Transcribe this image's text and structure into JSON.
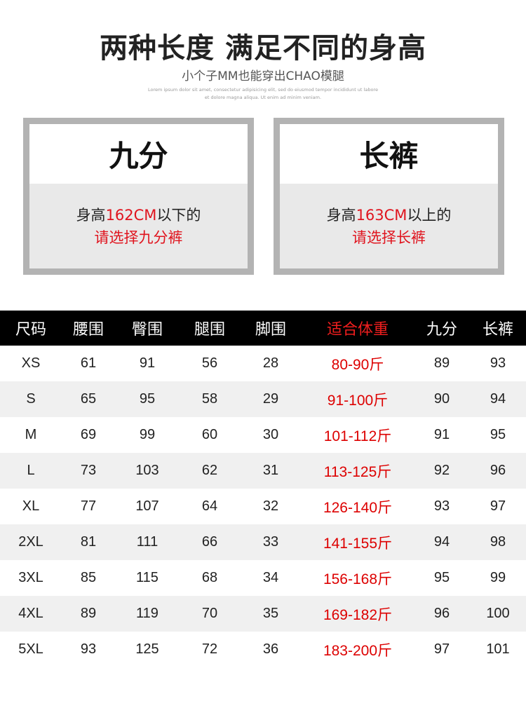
{
  "header": {
    "title": "两种长度 满足不同的身高",
    "subtitle": "小个子MM也能穿出CHAO模腿",
    "lorem": [
      "Lorem ipsum dolor sit amet, consectetur adipisicing elit, sed do eiusmod tempor incididunt ut labore",
      "et dolore magna aliqua. Ut enim ad minim veniam."
    ]
  },
  "options": [
    {
      "name": "九分",
      "line1_pre": "身高",
      "line1_red": "162CM",
      "line1_post": "以下的",
      "line2": "请选择九分裤"
    },
    {
      "name": "长裤",
      "line1_pre": "身高",
      "line1_red": "163CM",
      "line1_post": "以上的",
      "line2": "请选择长裤"
    }
  ],
  "table": {
    "headers": [
      "尺码",
      "腰围",
      "臀围",
      "腿围",
      "脚围",
      "适合体重",
      "九分",
      "长裤"
    ],
    "rows": [
      [
        "XS",
        "61",
        "91",
        "56",
        "28",
        "80-90斤",
        "89",
        "93"
      ],
      [
        "S",
        "65",
        "95",
        "58",
        "29",
        "91-100斤",
        "90",
        "94"
      ],
      [
        "M",
        "69",
        "99",
        "60",
        "30",
        "101-112斤",
        "91",
        "95"
      ],
      [
        "L",
        "73",
        "103",
        "62",
        "31",
        "113-125斤",
        "92",
        "96"
      ],
      [
        "XL",
        "77",
        "107",
        "64",
        "32",
        "126-140斤",
        "93",
        "97"
      ],
      [
        "2XL",
        "81",
        "111",
        "66",
        "33",
        "141-155斤",
        "94",
        "98"
      ],
      [
        "3XL",
        "85",
        "115",
        "68",
        "34",
        "156-168斤",
        "95",
        "99"
      ],
      [
        "4XL",
        "89",
        "119",
        "70",
        "35",
        "169-182斤",
        "96",
        "100"
      ],
      [
        "5XL",
        "93",
        "125",
        "72",
        "36",
        "183-200斤",
        "97",
        "101"
      ]
    ]
  },
  "colors": {
    "accent_red": "#e0141e",
    "header_bg": "#000000"
  }
}
